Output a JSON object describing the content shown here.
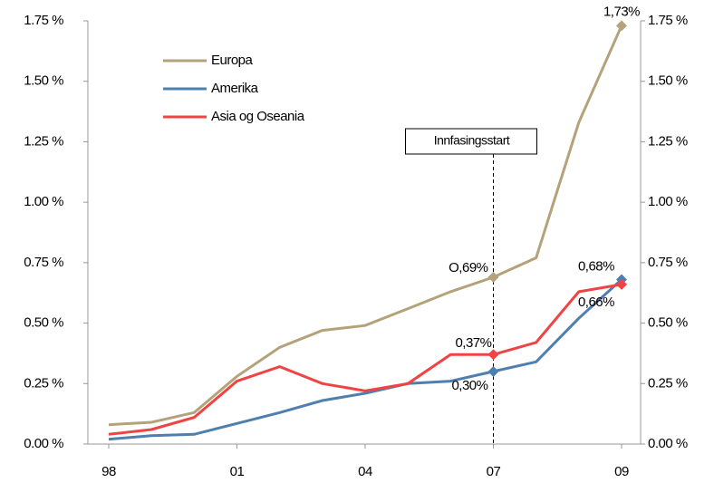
{
  "chart_data": {
    "type": "line",
    "categories": [
      "98",
      null,
      null,
      "01",
      null,
      null,
      "04",
      null,
      null,
      "07",
      null,
      null,
      "09"
    ],
    "series": [
      {
        "name": "Europa",
        "color": "#b3a27a",
        "values": [
          0.08,
          0.09,
          0.13,
          0.28,
          0.4,
          0.47,
          0.49,
          0.56,
          0.63,
          0.69,
          0.77,
          1.33,
          1.73
        ],
        "value_labels": [
          null,
          null,
          null,
          null,
          null,
          null,
          null,
          null,
          null,
          "O,69%",
          null,
          null,
          "1,73%"
        ]
      },
      {
        "name": "Amerika",
        "color": "#4f7fae",
        "values": [
          0.02,
          0.035,
          0.04,
          0.085,
          0.13,
          0.18,
          0.21,
          0.25,
          0.26,
          0.3,
          0.34,
          0.52,
          0.68
        ],
        "value_labels": [
          null,
          null,
          null,
          null,
          null,
          null,
          null,
          null,
          null,
          "0,30%",
          null,
          null,
          "0,68%"
        ]
      },
      {
        "name": "Asia og Oseania",
        "color": "#f04444",
        "values": [
          0.04,
          0.06,
          0.11,
          0.26,
          0.32,
          0.25,
          0.22,
          0.25,
          0.37,
          0.37,
          0.42,
          0.63,
          0.66
        ],
        "value_labels": [
          null,
          null,
          null,
          null,
          null,
          null,
          null,
          null,
          null,
          "0,37%",
          null,
          null,
          "0,66%"
        ]
      }
    ],
    "ylim": [
      0,
      1.75
    ],
    "yticks": [
      {
        "value": 0,
        "label": "0.00 %"
      },
      {
        "value": 0.25,
        "label": "0.25 %"
      },
      {
        "value": 0.5,
        "label": "0.50 %"
      },
      {
        "value": 0.75,
        "label": "0.75 %"
      },
      {
        "value": 1.0,
        "label": "1.00 %"
      },
      {
        "value": 1.25,
        "label": "1.25 %"
      },
      {
        "value": 1.5,
        "label": "1.50 %"
      },
      {
        "value": 1.75,
        "label": "1.75 %"
      }
    ],
    "y2lim": [
      0,
      1.75
    ],
    "y2ticks": [
      {
        "value": 0,
        "label": "0.00 %"
      },
      {
        "value": 0.25,
        "label": "0.25 %"
      },
      {
        "value": 0.5,
        "label": "0.50 %"
      },
      {
        "value": 0.75,
        "label": "0.75 %"
      },
      {
        "value": 1.0,
        "label": "1.00 %"
      },
      {
        "value": 1.25,
        "label": "1.25 %"
      },
      {
        "value": 1.5,
        "label": "1.50 %"
      },
      {
        "value": 1.75,
        "label": "1.75 %"
      }
    ],
    "annotation": {
      "text": "Innfasingsstart",
      "x": "07"
    },
    "legend": "upper left",
    "grid": false
  }
}
